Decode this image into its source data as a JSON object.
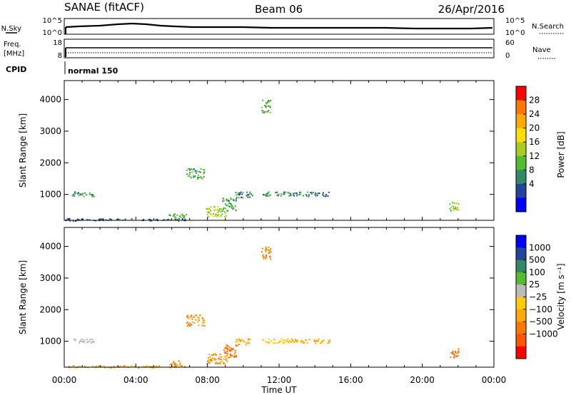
{
  "header": {
    "station": "SANAE (fitACF)",
    "beam": "Beam 06",
    "date": "26/Apr/2016"
  },
  "noise_panel": {
    "left_label": "N.Sky",
    "right_label": "N.Search",
    "left_ticks": [
      "10^5",
      "10^0"
    ],
    "right_ticks": [
      "10^5",
      "10^0"
    ]
  },
  "freq_panel": {
    "label_line1": "Freq.",
    "label_line2": "[MHz]",
    "right_label": "Nave",
    "left_ticks": [
      "18",
      "8"
    ],
    "right_ticks": [
      "60",
      "0"
    ]
  },
  "cpid": {
    "label": "CPID",
    "value": "normal 150"
  },
  "power_colorbar": {
    "label": "Power [dB]",
    "ticks": [
      "28",
      "24",
      "20",
      "16",
      "12",
      "8",
      "4"
    ],
    "colors": [
      "#ff0000",
      "#ff7700",
      "#ffaa00",
      "#ffdd00",
      "#aacc22",
      "#55bb33",
      "#338866",
      "#224499",
      "#0000ff"
    ]
  },
  "velocity_colorbar": {
    "label": "Velocity [m s⁻¹]",
    "ticks": [
      "1000",
      "500",
      "100",
      "25",
      "−25",
      "−100",
      "−500",
      "−1000"
    ],
    "colors": [
      "#0000ff",
      "#224499",
      "#338866",
      "#55bb33",
      "#bbbbbb",
      "#ffcc00",
      "#ffaa00",
      "#ff7700",
      "#ff5500",
      "#ff0000"
    ]
  },
  "chart_data": [
    {
      "type": "heatmap",
      "title": "Power",
      "ylabel": "Slant Range [km]",
      "xlabel": "Time UT",
      "xticks": [
        "00:00",
        "04:00",
        "08:00",
        "12:00",
        "16:00",
        "20:00",
        "00:00"
      ],
      "yticks": [
        "1000",
        "2000",
        "3000",
        "4000"
      ],
      "xlim": [
        0,
        24
      ],
      "ylim": [
        180,
        4600
      ],
      "colorbar_range": [
        0,
        32
      ],
      "regions": [
        {
          "t": [
            6.8,
            7.8
          ],
          "r": [
            1500,
            1850
          ],
          "v": 11
        },
        {
          "t": [
            7.9,
            9.1
          ],
          "r": [
            300,
            650
          ],
          "v": 16
        },
        {
          "t": [
            8.8,
            9.6
          ],
          "r": [
            500,
            900
          ],
          "v": 10
        },
        {
          "t": [
            9.5,
            10.5
          ],
          "r": [
            900,
            1100
          ],
          "v": 9
        },
        {
          "t": [
            11.0,
            12.6
          ],
          "r": [
            950,
            1100
          ],
          "v": 10
        },
        {
          "t": [
            12.5,
            14.8
          ],
          "r": [
            950,
            1100
          ],
          "v": 8
        },
        {
          "t": [
            5.8,
            6.8
          ],
          "r": [
            200,
            400
          ],
          "v": 12
        },
        {
          "t": [
            0.0,
            7.0
          ],
          "r": [
            180,
            250
          ],
          "v": 6
        },
        {
          "t": [
            11.0,
            11.5
          ],
          "r": [
            3600,
            4000
          ],
          "v": 12
        },
        {
          "t": [
            21.5,
            22.0
          ],
          "r": [
            500,
            800
          ],
          "v": 14
        },
        {
          "t": [
            0.4,
            1.7
          ],
          "r": [
            950,
            1100
          ],
          "v": 9
        }
      ]
    },
    {
      "type": "heatmap",
      "title": "Velocity",
      "ylabel": "Slant Range [km]",
      "xlabel": "Time UT",
      "xticks": [
        "00:00",
        "04:00",
        "08:00",
        "12:00",
        "16:00",
        "20:00",
        "00:00"
      ],
      "yticks": [
        "1000",
        "2000",
        "3000",
        "4000"
      ],
      "xlim": [
        0,
        24
      ],
      "ylim": [
        180,
        4600
      ],
      "regions": [
        {
          "t": [
            6.8,
            7.8
          ],
          "r": [
            1500,
            1850
          ],
          "v": -100
        },
        {
          "t": [
            7.9,
            9.1
          ],
          "r": [
            300,
            650
          ],
          "v": -100
        },
        {
          "t": [
            8.8,
            9.6
          ],
          "r": [
            500,
            900
          ],
          "v": -400
        },
        {
          "t": [
            9.5,
            10.5
          ],
          "r": [
            900,
            1100
          ],
          "v": -50
        },
        {
          "t": [
            11.0,
            12.6
          ],
          "r": [
            950,
            1100
          ],
          "v": -10
        },
        {
          "t": [
            12.5,
            14.8
          ],
          "r": [
            950,
            1100
          ],
          "v": -50
        },
        {
          "t": [
            5.8,
            6.8
          ],
          "r": [
            200,
            400
          ],
          "v": -100
        },
        {
          "t": [
            0.0,
            7.0
          ],
          "r": [
            180,
            250
          ],
          "v": -80
        },
        {
          "t": [
            11.0,
            11.5
          ],
          "r": [
            3600,
            4000
          ],
          "v": -150
        },
        {
          "t": [
            21.5,
            22.0
          ],
          "r": [
            500,
            800
          ],
          "v": -300
        },
        {
          "t": [
            0.4,
            1.7
          ],
          "r": [
            950,
            1100
          ],
          "v": 60
        }
      ]
    }
  ]
}
